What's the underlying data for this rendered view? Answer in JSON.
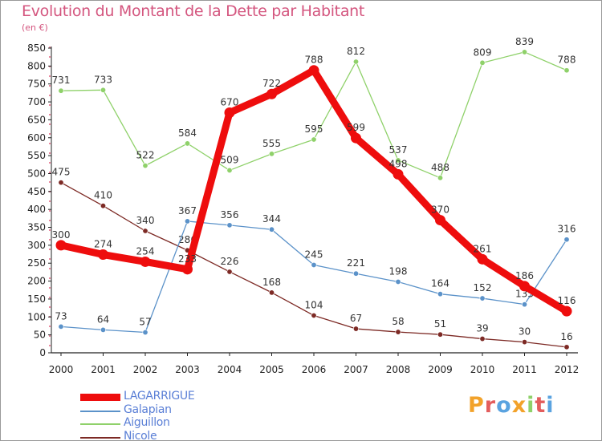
{
  "title": "Evolution du Montant de la Dette par Habitant",
  "subtitle": "(en €)",
  "chart_data": {
    "type": "line",
    "x": [
      "2000",
      "2001",
      "2002",
      "2003",
      "2004",
      "2005",
      "2006",
      "2007",
      "2008",
      "2009",
      "2010",
      "2011",
      "2012"
    ],
    "ylim": [
      0,
      850
    ],
    "yticks": [
      0,
      50,
      100,
      150,
      200,
      250,
      300,
      350,
      400,
      450,
      500,
      550,
      600,
      650,
      700,
      750,
      800,
      850
    ],
    "grid": false,
    "legend_position": "bottom-left",
    "series": [
      {
        "name": "Aiguillon",
        "color": "#8fd16a",
        "values": [
          731,
          733,
          522,
          584,
          509,
          555,
          595,
          812,
          537,
          488,
          809,
          839,
          788
        ]
      },
      {
        "name": "Nicole",
        "color": "#7d2a25",
        "values": [
          475,
          410,
          340,
          286,
          226,
          168,
          104,
          67,
          58,
          51,
          39,
          30,
          16
        ]
      },
      {
        "name": "Galapian",
        "color": "#5b92c9",
        "values": [
          73,
          64,
          57,
          367,
          356,
          344,
          245,
          221,
          198,
          164,
          152,
          135,
          316
        ]
      },
      {
        "name": "LAGARRIGUE",
        "color": "#ee0d0d",
        "values": [
          300,
          274,
          254,
          233,
          670,
          722,
          788,
          599,
          498,
          370,
          261,
          186,
          116
        ]
      }
    ],
    "labels": {
      "Aiguillon": [
        "731",
        "733",
        "522",
        "584",
        "509",
        "555",
        "595",
        "812",
        "537",
        "488",
        "809",
        "839",
        "788"
      ],
      "Nicole": [
        "475",
        "410",
        "340",
        "286",
        "226",
        "168",
        "104",
        "67",
        "58",
        "51",
        "39",
        "30",
        "16"
      ],
      "Galapian": [
        "73",
        "64",
        "57",
        "367",
        "356",
        "344",
        "245",
        "221",
        "198",
        "164",
        "152",
        "135",
        "316"
      ],
      "LAGARRIGUE": [
        "300",
        "274",
        "254",
        "233",
        "670",
        "722",
        "788",
        "599",
        "498",
        "370",
        "261",
        "186",
        "116"
      ]
    }
  },
  "legend": [
    {
      "name": "LAGARRIGUE",
      "color": "#ee0d0d",
      "key": "lagarrigue"
    },
    {
      "name": "Galapian",
      "color": "#5b92c9",
      "key": "galapian"
    },
    {
      "name": "Aiguillon",
      "color": "#8fd16a",
      "key": "aiguillon"
    },
    {
      "name": "Nicole",
      "color": "#7d2a25",
      "key": "nicole"
    }
  ],
  "logo": {
    "text": "Proxiti",
    "letter_colors": [
      "#f2a22a",
      "#e35d5d",
      "#5aa3e0",
      "#f2a22a",
      "#8fd16a",
      "#e35d5d",
      "#5aa3e0"
    ]
  }
}
